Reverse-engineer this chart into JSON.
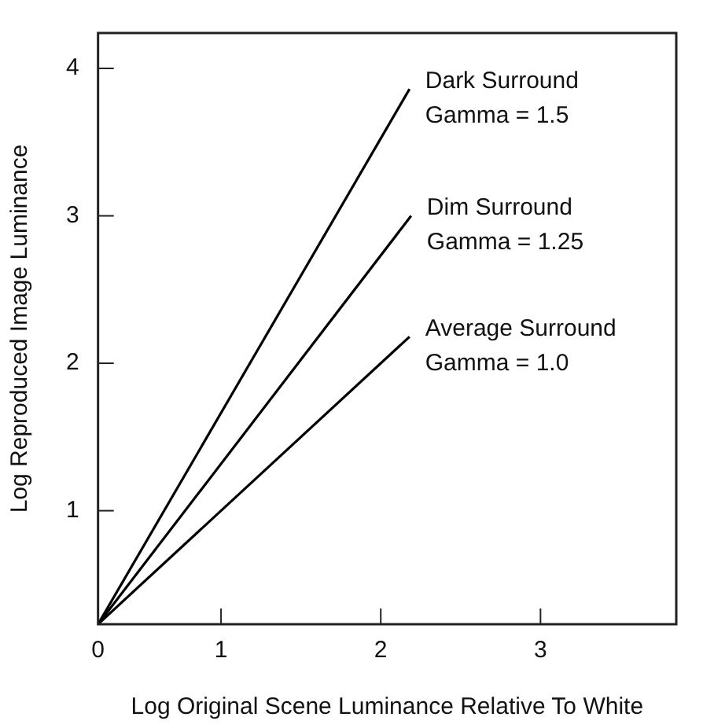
{
  "chart_data": {
    "type": "line",
    "xlabel": "Log Original Scene Luminance Relative To White",
    "ylabel": "Log Reproduced Image Luminance",
    "series": [
      {
        "name": "Dark Surround\nGamma = 1.5",
        "color": "#000000",
        "x": [
          0.23,
          2.18
        ],
        "values": [
          0.23,
          3.86
        ]
      },
      {
        "name": "Dim Surround\nGamma = 1.25",
        "color": "#000000",
        "x": [
          0.23,
          2.19
        ],
        "values": [
          0.23,
          3.0
        ]
      },
      {
        "name": "Average Surround\nGamma = 1.0",
        "color": "#000000",
        "x": [
          0.23,
          2.18
        ],
        "values": [
          0.23,
          2.18
        ]
      }
    ],
    "xlim": [
      0.23,
      3.85
    ],
    "ylim": [
      0.23,
      4.24
    ],
    "xticks": [
      {
        "value": 0.23,
        "label": "0"
      },
      1,
      2,
      3
    ],
    "yticks": [
      1,
      2,
      3,
      4
    ],
    "marker": "none",
    "line_style": "solid",
    "grid": false,
    "legend": false
  }
}
